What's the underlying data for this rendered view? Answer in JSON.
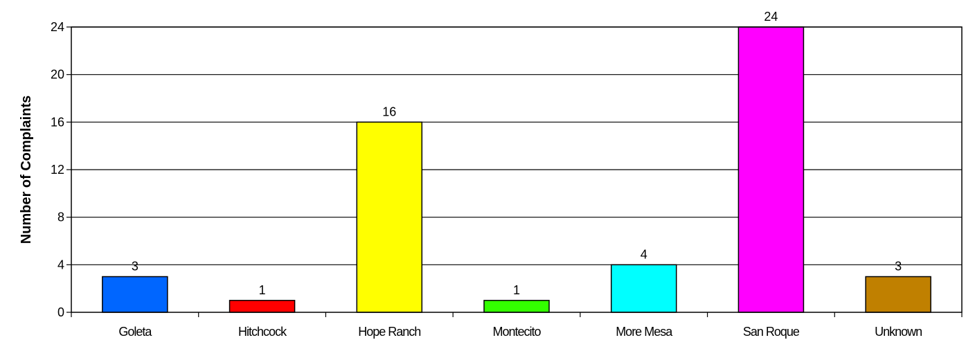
{
  "chart_data": {
    "type": "bar",
    "title": "",
    "xlabel": "",
    "ylabel": "Number of Complaints",
    "categories": [
      "Goleta",
      "Hitchcock",
      "Hope Ranch",
      "Montecito",
      "More Mesa",
      "San Roque",
      "Unknown"
    ],
    "values": [
      3,
      1,
      16,
      1,
      4,
      24,
      3
    ],
    "colors": [
      "#0066ff",
      "#ff0000",
      "#ffff00",
      "#33ff00",
      "#00ffff",
      "#ff00ff",
      "#c08000"
    ],
    "ylim": [
      0,
      24
    ],
    "yticks": [
      0,
      4,
      8,
      12,
      16,
      20,
      24
    ],
    "grid": true,
    "data_labels": true
  }
}
